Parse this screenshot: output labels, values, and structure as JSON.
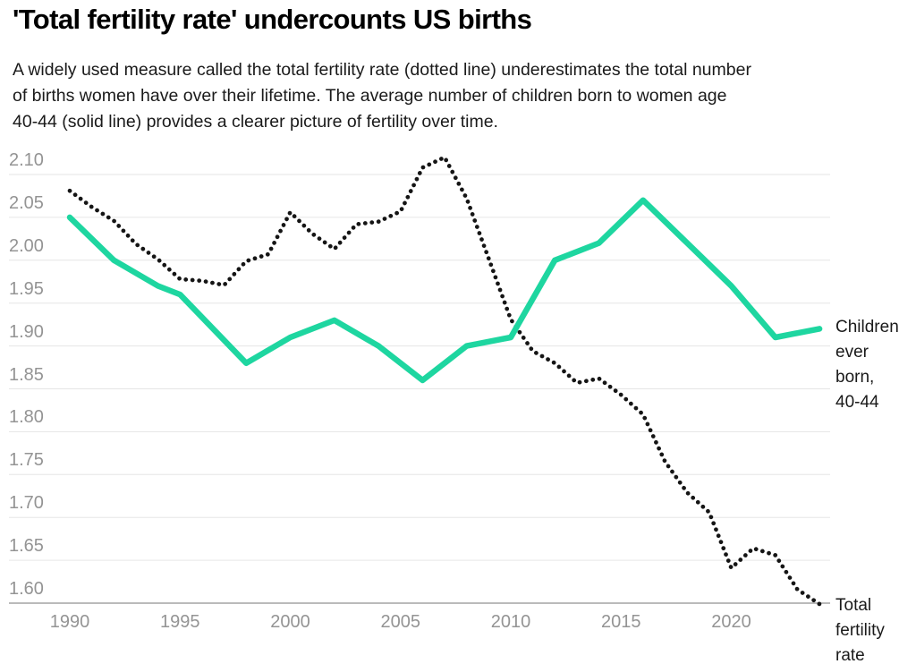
{
  "header": {
    "title": "'Total fertility rate' undercounts US births",
    "subtitle_lines": [
      "A widely used measure called the total fertility rate (dotted line) underestimates the total number",
      "of births women have over their lifetime. The average number of children born to women age",
      "40-44 (solid line) provides a clearer picture of fertility over time."
    ]
  },
  "chart_data": {
    "type": "line",
    "title": "'Total fertility rate' undercounts US births",
    "xlabel": "",
    "ylabel": "",
    "xlim": [
      1990,
      2024
    ],
    "ylim": [
      1.6,
      2.1
    ],
    "grid": "horizontal",
    "legend_position": "right-edge-annotations",
    "y_ticks": [
      "2.10",
      "2.05",
      "2.00",
      "1.95",
      "1.90",
      "1.85",
      "1.80",
      "1.75",
      "1.70",
      "1.65",
      "1.60"
    ],
    "x_ticks": [
      1990,
      1995,
      2000,
      2005,
      2010,
      2015,
      2020
    ],
    "colors": {
      "grid": "#e6e6e6",
      "axis": "#b0b0b0",
      "tick_label": "#949494",
      "annotation_text": "#1a1a1a",
      "fertility_dots": "#151515",
      "children_green": "#1ed6a0"
    },
    "series": [
      {
        "name": "Total fertility rate",
        "style": "dotted",
        "color": "#151515",
        "label_lines": [
          "Total",
          "fertility",
          "rate"
        ],
        "x": [
          1990,
          1991,
          1992,
          1993,
          1994,
          1995,
          1996,
          1997,
          1998,
          1999,
          2000,
          2001,
          2002,
          2003,
          2004,
          2005,
          2006,
          2007,
          2008,
          2009,
          2010,
          2011,
          2012,
          2013,
          2014,
          2015,
          2016,
          2017,
          2018,
          2019,
          2020,
          2021,
          2022,
          2023,
          2024
        ],
        "values": [
          2.081,
          2.062,
          2.046,
          2.019,
          2.001,
          1.978,
          1.976,
          1.971,
          1.999,
          2.007,
          2.056,
          2.031,
          2.013,
          2.042,
          2.045,
          2.057,
          2.108,
          2.12,
          2.072,
          2.002,
          1.931,
          1.894,
          1.88,
          1.857,
          1.862,
          1.843,
          1.82,
          1.765,
          1.729,
          1.706,
          1.641,
          1.664,
          1.656,
          1.616,
          1.599
        ]
      },
      {
        "name": "Children ever born, 40-44",
        "style": "solid",
        "color": "#1ed6a0",
        "label_lines": [
          "Children",
          "ever",
          "born,",
          "40-44"
        ],
        "x": [
          1990,
          1992,
          1994,
          1995,
          1998,
          2000,
          2002,
          2004,
          2006,
          2008,
          2010,
          2012,
          2014,
          2016,
          2018,
          2020,
          2022,
          2024
        ],
        "values": [
          2.05,
          2.0,
          1.97,
          1.96,
          1.88,
          1.91,
          1.93,
          1.9,
          1.86,
          1.9,
          1.91,
          2.0,
          2.02,
          2.07,
          2.02,
          1.97,
          1.91,
          1.92
        ]
      }
    ]
  }
}
